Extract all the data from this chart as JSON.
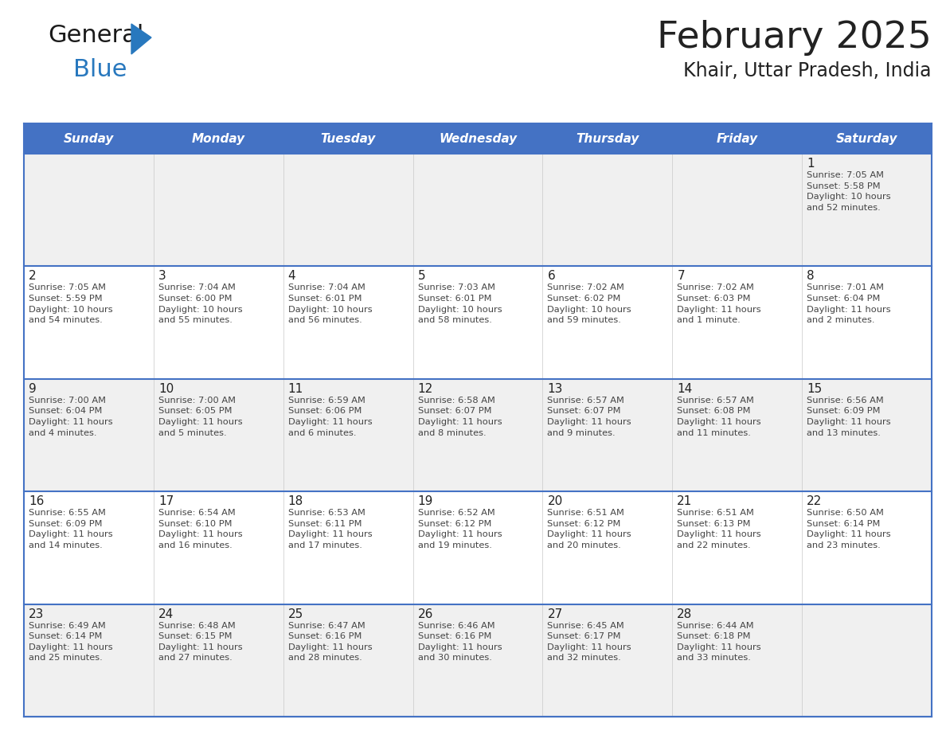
{
  "title": "February 2025",
  "subtitle": "Khair, Uttar Pradesh, India",
  "header_bg": "#4472C4",
  "header_text_color": "#FFFFFF",
  "day_names": [
    "Sunday",
    "Monday",
    "Tuesday",
    "Wednesday",
    "Thursday",
    "Friday",
    "Saturday"
  ],
  "background_color": "#FFFFFF",
  "cell_bg_light": "#F0F0F0",
  "cell_bg_white": "#FFFFFF",
  "separator_color": "#4472C4",
  "day_number_color": "#222222",
  "text_color": "#444444",
  "logo_general_color": "#1a1a1a",
  "logo_blue_color": "#2878BE",
  "calendar_data": [
    [
      {
        "day": null,
        "info": ""
      },
      {
        "day": null,
        "info": ""
      },
      {
        "day": null,
        "info": ""
      },
      {
        "day": null,
        "info": ""
      },
      {
        "day": null,
        "info": ""
      },
      {
        "day": null,
        "info": ""
      },
      {
        "day": 1,
        "info": "Sunrise: 7:05 AM\nSunset: 5:58 PM\nDaylight: 10 hours\nand 52 minutes."
      }
    ],
    [
      {
        "day": 2,
        "info": "Sunrise: 7:05 AM\nSunset: 5:59 PM\nDaylight: 10 hours\nand 54 minutes."
      },
      {
        "day": 3,
        "info": "Sunrise: 7:04 AM\nSunset: 6:00 PM\nDaylight: 10 hours\nand 55 minutes."
      },
      {
        "day": 4,
        "info": "Sunrise: 7:04 AM\nSunset: 6:01 PM\nDaylight: 10 hours\nand 56 minutes."
      },
      {
        "day": 5,
        "info": "Sunrise: 7:03 AM\nSunset: 6:01 PM\nDaylight: 10 hours\nand 58 minutes."
      },
      {
        "day": 6,
        "info": "Sunrise: 7:02 AM\nSunset: 6:02 PM\nDaylight: 10 hours\nand 59 minutes."
      },
      {
        "day": 7,
        "info": "Sunrise: 7:02 AM\nSunset: 6:03 PM\nDaylight: 11 hours\nand 1 minute."
      },
      {
        "day": 8,
        "info": "Sunrise: 7:01 AM\nSunset: 6:04 PM\nDaylight: 11 hours\nand 2 minutes."
      }
    ],
    [
      {
        "day": 9,
        "info": "Sunrise: 7:00 AM\nSunset: 6:04 PM\nDaylight: 11 hours\nand 4 minutes."
      },
      {
        "day": 10,
        "info": "Sunrise: 7:00 AM\nSunset: 6:05 PM\nDaylight: 11 hours\nand 5 minutes."
      },
      {
        "day": 11,
        "info": "Sunrise: 6:59 AM\nSunset: 6:06 PM\nDaylight: 11 hours\nand 6 minutes."
      },
      {
        "day": 12,
        "info": "Sunrise: 6:58 AM\nSunset: 6:07 PM\nDaylight: 11 hours\nand 8 minutes."
      },
      {
        "day": 13,
        "info": "Sunrise: 6:57 AM\nSunset: 6:07 PM\nDaylight: 11 hours\nand 9 minutes."
      },
      {
        "day": 14,
        "info": "Sunrise: 6:57 AM\nSunset: 6:08 PM\nDaylight: 11 hours\nand 11 minutes."
      },
      {
        "day": 15,
        "info": "Sunrise: 6:56 AM\nSunset: 6:09 PM\nDaylight: 11 hours\nand 13 minutes."
      }
    ],
    [
      {
        "day": 16,
        "info": "Sunrise: 6:55 AM\nSunset: 6:09 PM\nDaylight: 11 hours\nand 14 minutes."
      },
      {
        "day": 17,
        "info": "Sunrise: 6:54 AM\nSunset: 6:10 PM\nDaylight: 11 hours\nand 16 minutes."
      },
      {
        "day": 18,
        "info": "Sunrise: 6:53 AM\nSunset: 6:11 PM\nDaylight: 11 hours\nand 17 minutes."
      },
      {
        "day": 19,
        "info": "Sunrise: 6:52 AM\nSunset: 6:12 PM\nDaylight: 11 hours\nand 19 minutes."
      },
      {
        "day": 20,
        "info": "Sunrise: 6:51 AM\nSunset: 6:12 PM\nDaylight: 11 hours\nand 20 minutes."
      },
      {
        "day": 21,
        "info": "Sunrise: 6:51 AM\nSunset: 6:13 PM\nDaylight: 11 hours\nand 22 minutes."
      },
      {
        "day": 22,
        "info": "Sunrise: 6:50 AM\nSunset: 6:14 PM\nDaylight: 11 hours\nand 23 minutes."
      }
    ],
    [
      {
        "day": 23,
        "info": "Sunrise: 6:49 AM\nSunset: 6:14 PM\nDaylight: 11 hours\nand 25 minutes."
      },
      {
        "day": 24,
        "info": "Sunrise: 6:48 AM\nSunset: 6:15 PM\nDaylight: 11 hours\nand 27 minutes."
      },
      {
        "day": 25,
        "info": "Sunrise: 6:47 AM\nSunset: 6:16 PM\nDaylight: 11 hours\nand 28 minutes."
      },
      {
        "day": 26,
        "info": "Sunrise: 6:46 AM\nSunset: 6:16 PM\nDaylight: 11 hours\nand 30 minutes."
      },
      {
        "day": 27,
        "info": "Sunrise: 6:45 AM\nSunset: 6:17 PM\nDaylight: 11 hours\nand 32 minutes."
      },
      {
        "day": 28,
        "info": "Sunrise: 6:44 AM\nSunset: 6:18 PM\nDaylight: 11 hours\nand 33 minutes."
      },
      {
        "day": null,
        "info": ""
      }
    ]
  ],
  "fig_width": 11.88,
  "fig_height": 9.18,
  "dpi": 100,
  "header_fontsize": 11,
  "day_num_fontsize": 11,
  "info_fontsize": 8.2,
  "title_fontsize": 34,
  "subtitle_fontsize": 17
}
